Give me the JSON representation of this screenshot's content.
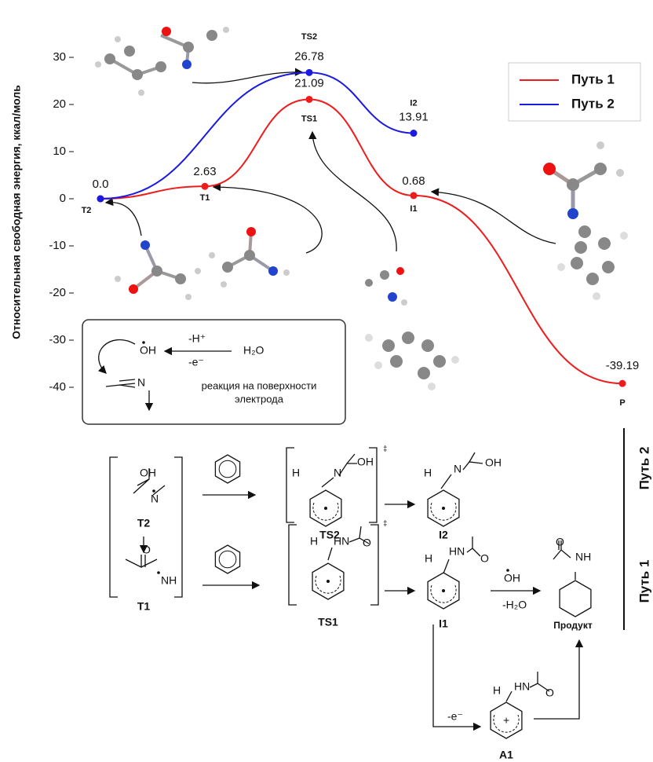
{
  "chart_data": {
    "type": "line",
    "y_label": "Относительная свободная энергия, ккал/моль",
    "ylim": [
      -41,
      35
    ],
    "yticks": [
      -40,
      -30,
      -20,
      -10,
      0,
      10,
      20,
      30
    ],
    "legend": "upper right",
    "series": [
      {
        "name": "Путь 1",
        "color": "#ee1c1c",
        "x": [
          0,
          1,
          2,
          3,
          5
        ],
        "values": [
          0,
          2.63,
          21.09,
          0.68,
          -39.19
        ],
        "value_labels": [
          "0.0",
          "2.63",
          "21.09",
          "0.68",
          "-39.19"
        ],
        "point_labels": [
          "T2",
          "T1",
          "TS1",
          "I1",
          "P"
        ]
      },
      {
        "name": "Путь 2",
        "color": "#1a1ae0",
        "x": [
          0,
          2,
          3
        ],
        "values": [
          0,
          26.78,
          13.91
        ],
        "value_labels": [
          null,
          "26.78",
          "13.91"
        ],
        "point_labels": [
          null,
          "TS2",
          "I2"
        ]
      }
    ]
  },
  "inset": {
    "oh": "OH",
    "minus_h": "-H⁺",
    "minus_e": "-e⁻",
    "water": "H₂O",
    "n": "N",
    "caption_1": "реакция на поверхности",
    "caption_2": "электрода"
  },
  "scheme": {
    "path2": "Путь 2",
    "path1": "Путь 1",
    "dagger": "‡",
    "compounds": {
      "T2": "T2",
      "T1": "T1",
      "TS2": "TS2",
      "I2": "I2",
      "TS1": "TS1",
      "I1": "I1",
      "product": "Продукт",
      "A1": "A1"
    },
    "reagents": {
      "oh": "OH",
      "minus_h2o": "-H₂O",
      "minus_e": "-e⁻"
    },
    "atoms": [
      "OH",
      "N",
      "O",
      "NH",
      "H",
      "N",
      "OH",
      "H",
      "N",
      "OH",
      "H",
      "HN",
      "O",
      "H",
      "HN",
      "O",
      "O",
      "NH",
      "H",
      "HN",
      "O",
      "+"
    ]
  }
}
